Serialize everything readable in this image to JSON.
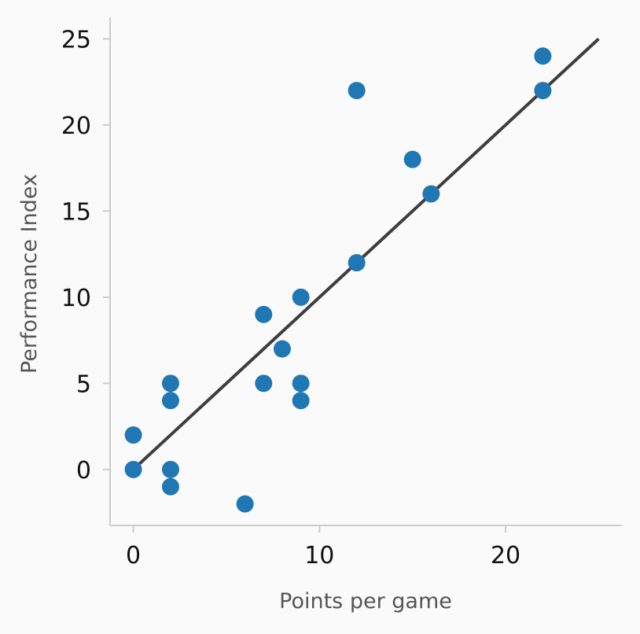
{
  "chart_data": {
    "type": "scatter",
    "title": "",
    "xlabel": "Points per game",
    "ylabel": "Performance Index",
    "xlim": [
      -1.25,
      26.25
    ],
    "ylim": [
      -3.25,
      26.25
    ],
    "xticks": [
      0,
      10,
      20
    ],
    "yticks": [
      0,
      5,
      10,
      15,
      20,
      25
    ],
    "grid": false,
    "series": [
      {
        "color": "#1f77b4",
        "points": [
          {
            "x": 0,
            "y": 2
          },
          {
            "x": 0,
            "y": 0
          },
          {
            "x": 2,
            "y": 5
          },
          {
            "x": 2,
            "y": 4
          },
          {
            "x": 2,
            "y": 0
          },
          {
            "x": 2,
            "y": -1
          },
          {
            "x": 6,
            "y": -2
          },
          {
            "x": 7,
            "y": 9
          },
          {
            "x": 7,
            "y": 5
          },
          {
            "x": 8,
            "y": 7
          },
          {
            "x": 9,
            "y": 10
          },
          {
            "x": 9,
            "y": 5
          },
          {
            "x": 9,
            "y": 4
          },
          {
            "x": 12,
            "y": 22
          },
          {
            "x": 12,
            "y": 12
          },
          {
            "x": 15,
            "y": 18
          },
          {
            "x": 16,
            "y": 16
          },
          {
            "x": 22,
            "y": 24
          },
          {
            "x": 22,
            "y": 22
          }
        ]
      }
    ],
    "trendline": {
      "color": "#3d3d3d",
      "x": [
        0,
        25
      ],
      "y": [
        0,
        25
      ]
    }
  }
}
